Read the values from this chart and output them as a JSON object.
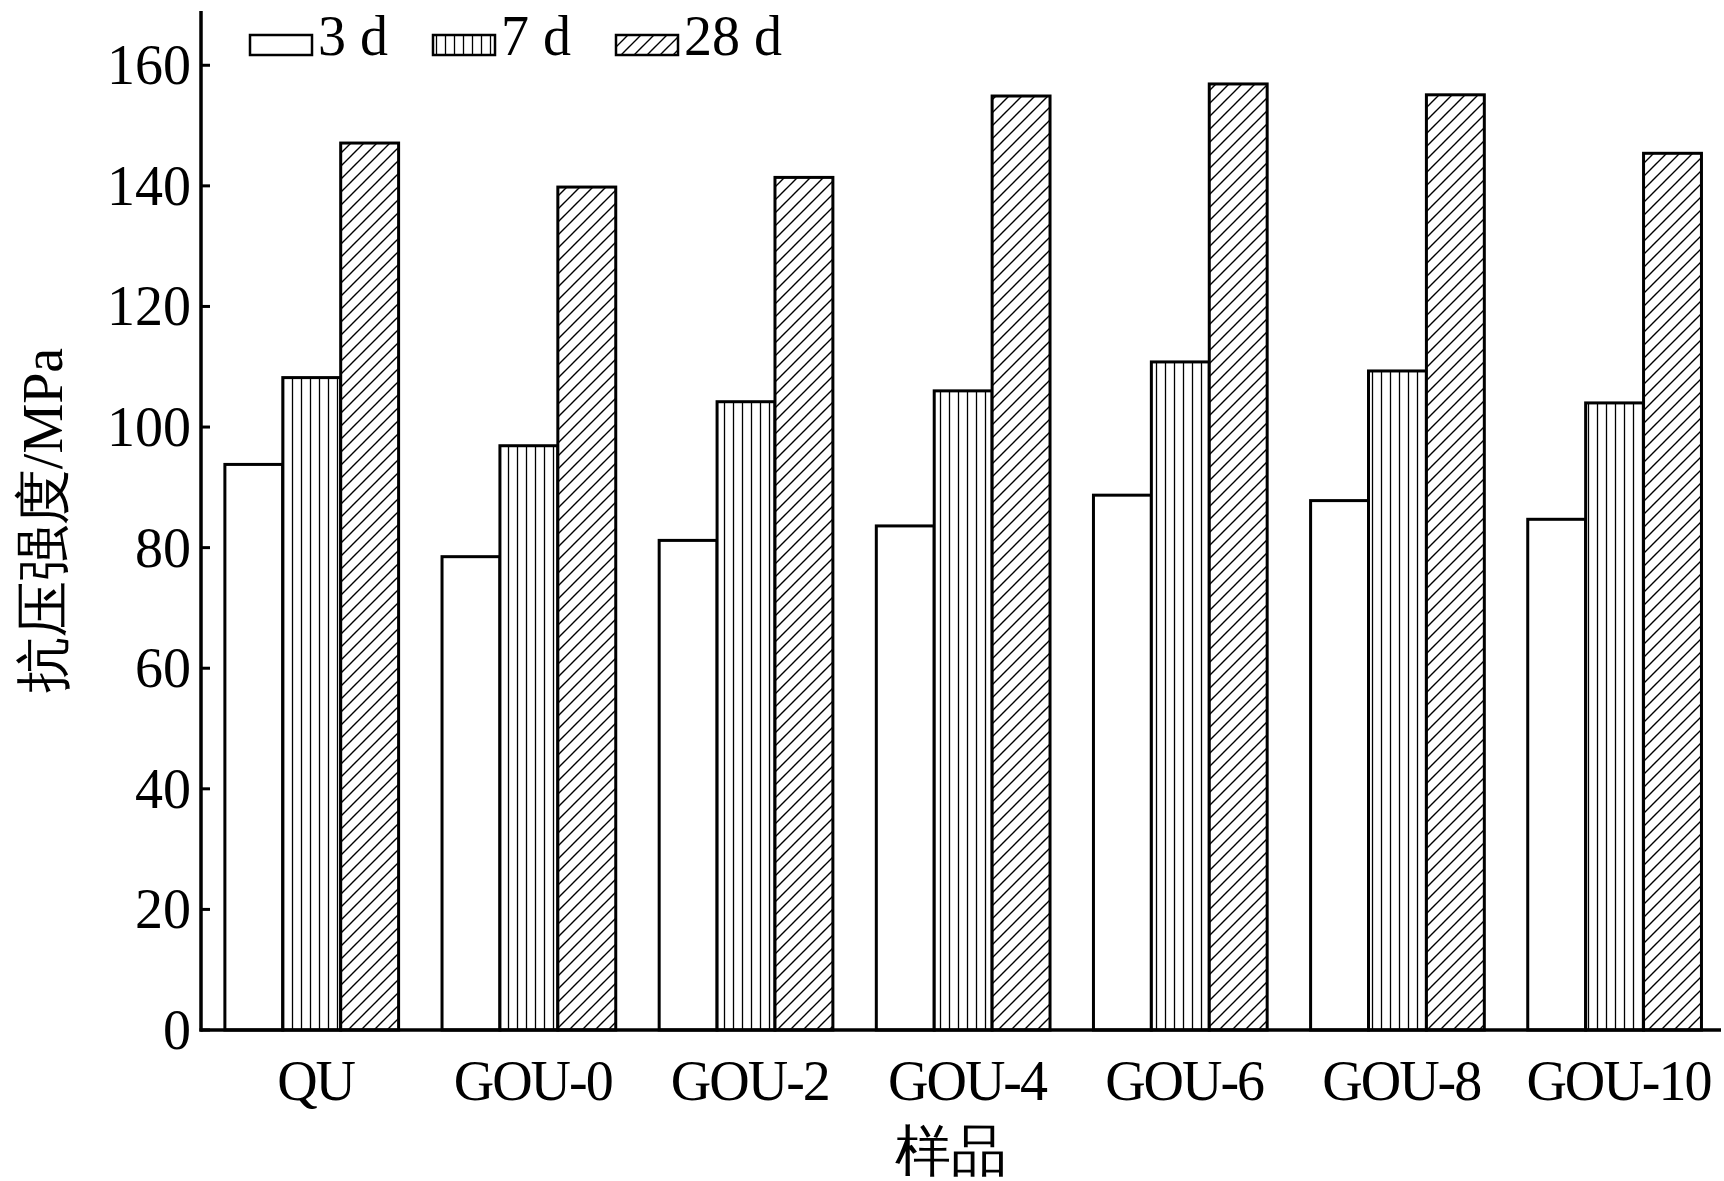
{
  "chart_data": {
    "type": "bar",
    "xlabel": "样品",
    "ylabel": "抗压强度/MPa",
    "categories": [
      "QU",
      "GOU-0",
      "GOU-2",
      "GOU-4",
      "GOU-6",
      "GOU-8",
      "GOU-10"
    ],
    "series": [
      {
        "name": "3 d",
        "color": "#ffffff",
        "values": [
          93.8,
          78.5,
          81.2,
          83.6,
          88.7,
          87.8,
          84.7
        ]
      },
      {
        "name": "7 d",
        "color": "#000000",
        "values": [
          108.2,
          96.9,
          104.2,
          106.0,
          110.8,
          109.3,
          104.0
        ]
      },
      {
        "name": "28 d",
        "color": "#000000",
        "values": [
          147.1,
          139.8,
          141.4,
          154.9,
          156.9,
          155.1,
          145.4
        ]
      }
    ],
    "ylim": [
      0,
      169
    ],
    "yticks": [
      0,
      20,
      40,
      60,
      80,
      100,
      120,
      140,
      160
    ],
    "legend": "top left",
    "grid": false
  }
}
